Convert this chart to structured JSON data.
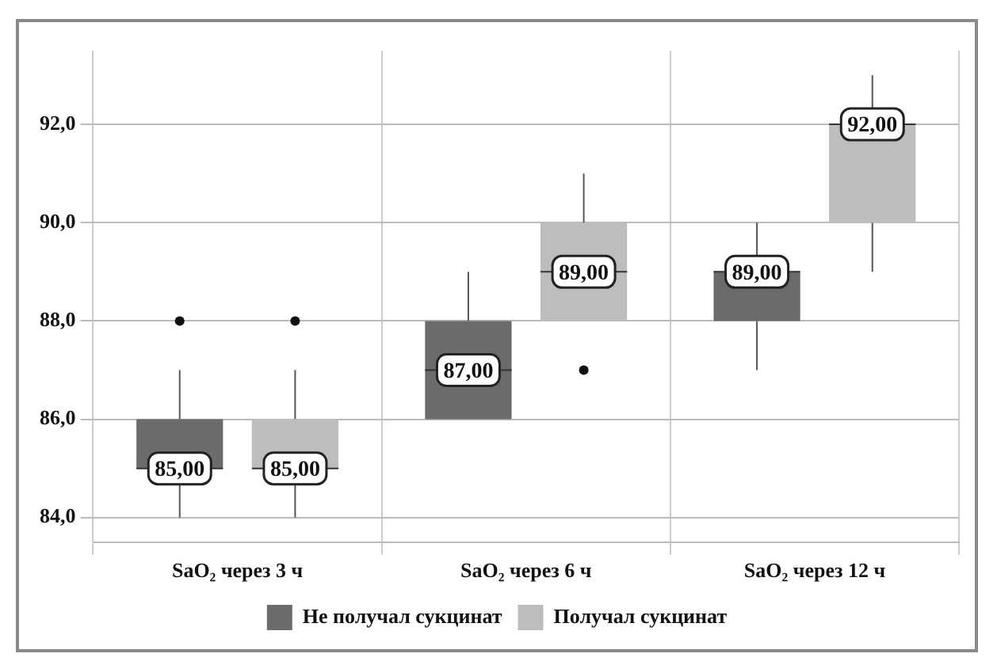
{
  "chart_data": {
    "type": "box",
    "categories": [
      "SaO₂ через 3 ч",
      "SaO₂ через 6 ч",
      "SaO₂ через 12 ч"
    ],
    "series": [
      {
        "name": "Не получал сукцинат",
        "color": "#6b6b6b",
        "boxes": [
          {
            "low": 84,
            "q1": 85,
            "median": 85,
            "q3": 86,
            "high": 87,
            "outliers": [
              88
            ]
          },
          {
            "low": 86,
            "q1": 86,
            "median": 87,
            "q3": 88,
            "high": 89
          },
          {
            "low": 87,
            "q1": 88,
            "median": 89,
            "q3": 89,
            "high": 90
          }
        ],
        "value_labels": [
          "85,00",
          "87,00",
          "89,00"
        ]
      },
      {
        "name": "Получал сукцинат",
        "color": "#bdbdbd",
        "boxes": [
          {
            "low": 84,
            "q1": 85,
            "median": 85,
            "q3": 86,
            "high": 87,
            "outliers": [
              88
            ]
          },
          {
            "low": 88,
            "q1": 88,
            "median": 89,
            "q3": 90,
            "high": 91,
            "outliers": [
              87
            ]
          },
          {
            "low": 89,
            "q1": 90,
            "median": 92,
            "q3": 92,
            "high": 93
          }
        ],
        "value_labels": [
          "85,00",
          "89,00",
          "92,00"
        ]
      }
    ],
    "ylim": [
      83.5,
      93.5
    ],
    "yticks": [
      {
        "value": 84,
        "label": "84,0"
      },
      {
        "value": 86,
        "label": "86,0"
      },
      {
        "value": 88,
        "label": "88,0"
      },
      {
        "value": 90,
        "label": "90,0"
      },
      {
        "value": 92,
        "label": "92,0"
      }
    ],
    "grid": true,
    "legend": "bottom"
  }
}
